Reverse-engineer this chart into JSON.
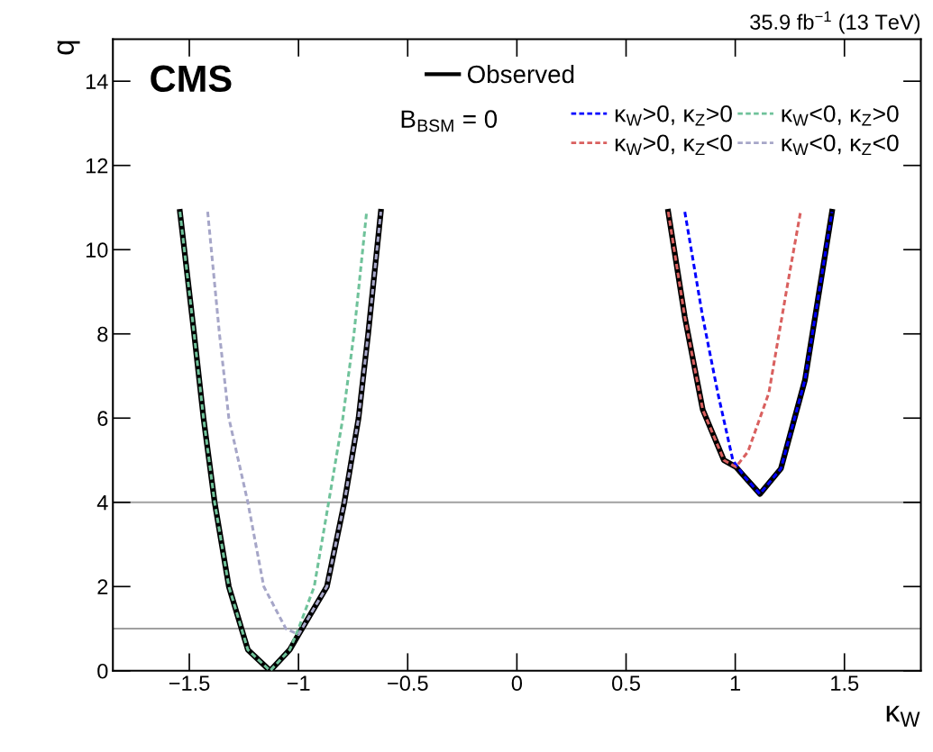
{
  "chart_data": {
    "type": "line",
    "xlabel": "κ$_{W}$",
    "ylabel": "q",
    "annotations": [
      "CMS",
      "B$_{BSM}$ = 0",
      "35.9 fb$^{−1}$ (13 TeV)"
    ],
    "xlim": [
      -1.85,
      1.85
    ],
    "ylim": [
      0,
      15
    ],
    "xticks": [
      {
        "value": -1.5,
        "label": "−1.5"
      },
      {
        "value": -1,
        "label": "−1"
      },
      {
        "value": -0.5,
        "label": "−0.5"
      },
      0,
      0.5,
      1,
      1.5
    ],
    "yticks": [
      0,
      2,
      4,
      6,
      8,
      10,
      12,
      14
    ],
    "ref_lines": [
      {
        "axis": "y",
        "value": 1,
        "color": "#a0a0a0"
      },
      {
        "axis": "y",
        "value": 4,
        "color": "#a0a0a0"
      }
    ],
    "grid": false,
    "legend": "top right",
    "series": [
      {
        "name": "Observed",
        "color": "#000000",
        "line_style": "solid",
        "x": [
          -1.543,
          -1.478,
          -1.435,
          -1.384,
          -1.319,
          -1.261,
          -1.232,
          -1.13,
          -1.04,
          -1.0,
          -0.87,
          -0.79,
          -0.725,
          -0.681,
          -0.623,
          null,
          0.693,
          0.769,
          0.851,
          0.948,
          1.003,
          1.044,
          1.113,
          1.209,
          1.319,
          1.443
        ],
        "values": [
          10.9,
          8,
          6,
          4,
          2,
          1,
          0.5,
          0,
          0.5,
          0.86,
          2,
          4,
          6,
          8,
          10.9,
          null,
          10.9,
          8.4,
          6.2,
          5.0,
          4.84,
          4.6,
          4.2,
          4.8,
          6.9,
          10.9
        ]
      },
      {
        "name": "κ$_{W}$>0, κ$_{Z}$>0",
        "color": "#0000ff",
        "line_style": "dashed",
        "x": [
          0.769,
          0.851,
          0.92,
          0.989,
          1.044,
          1.113,
          1.209,
          1.319,
          1.443
        ],
        "values": [
          10.9,
          8.4,
          6.6,
          5.0,
          4.6,
          4.2,
          4.8,
          6.9,
          10.9
        ]
      },
      {
        "name": "κ$_{W}$>0, κ$_{Z}$<0",
        "color": "#d9605f",
        "line_style": "dashed",
        "x": [
          0.693,
          0.769,
          0.851,
          0.948,
          1.003,
          1.058,
          1.154,
          1.237,
          1.299
        ],
        "values": [
          10.9,
          8.4,
          6.2,
          5.0,
          4.84,
          5.2,
          6.6,
          9.1,
          10.9
        ]
      },
      {
        "name": "κ$_{W}$<0, κ$_{Z}$>0",
        "color": "#6fc29a",
        "line_style": "dashed",
        "x": [
          -1.543,
          -1.478,
          -1.435,
          -1.384,
          -1.319,
          -1.261,
          -1.232,
          -1.13,
          -1.04,
          -1.0,
          -0.928,
          -0.862,
          -0.797,
          -0.746,
          -0.688
        ],
        "values": [
          10.9,
          8,
          6,
          4,
          2,
          1,
          0.5,
          0,
          0.5,
          1,
          2,
          4,
          6,
          8,
          10.9
        ]
      },
      {
        "name": "κ$_{W}$<0, κ$_{Z}$<0",
        "color": "#a6a6c8",
        "line_style": "dashed",
        "x": [
          -1.416,
          -1.362,
          -1.319,
          -1.232,
          -1.159,
          -1.058,
          -1.0,
          -0.87,
          -0.79,
          -0.725,
          -0.681,
          -0.623
        ],
        "values": [
          10.9,
          8,
          6,
          4,
          2,
          1,
          0.86,
          2,
          4,
          6,
          8,
          10.9
        ]
      }
    ]
  }
}
